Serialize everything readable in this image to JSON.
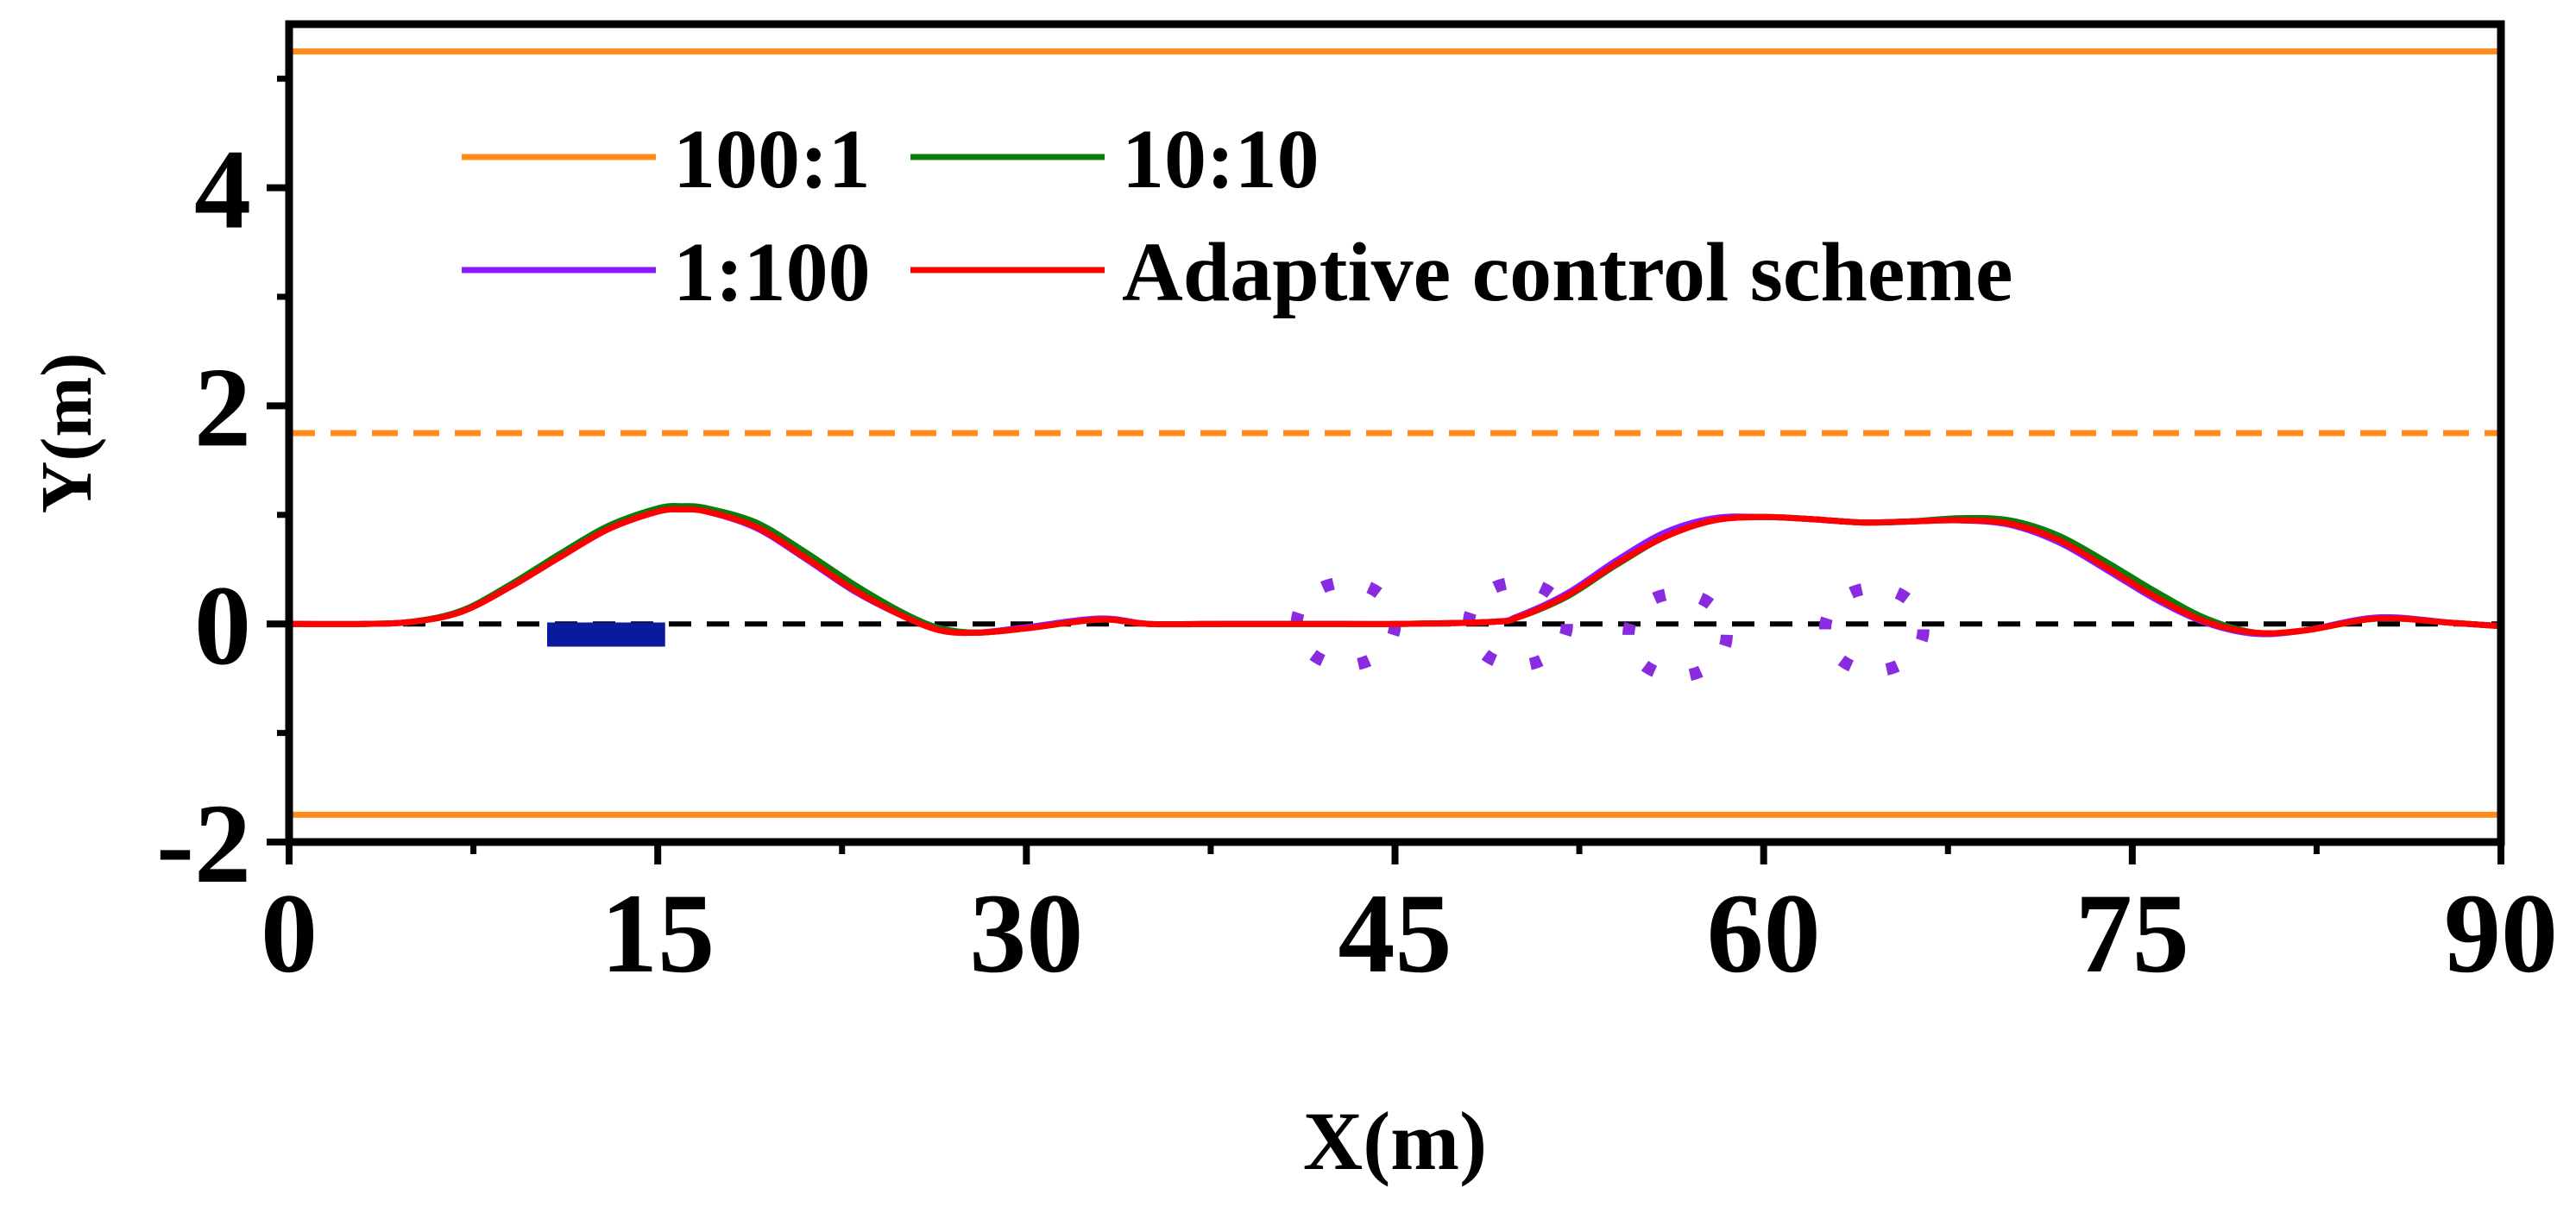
{
  "chart_data": {
    "type": "line",
    "title": "",
    "xlabel": "X(m)",
    "ylabel": "Y(m)",
    "xlim": [
      0,
      90
    ],
    "ylim": [
      -2,
      5.5
    ],
    "xticks": [
      0,
      15,
      30,
      45,
      60,
      75,
      90
    ],
    "xtick_labels": [
      "0",
      "15",
      "30",
      "45",
      "60",
      "75",
      "90"
    ],
    "yticks": [
      -2,
      0,
      2,
      4
    ],
    "ytick_labels": [
      "-2",
      "0",
      "2",
      "4"
    ],
    "grid": false,
    "legend_position": "top-left",
    "colors": {
      "boundary": "#ff8c1a",
      "centerline": "#000000",
      "s100_1": "#ff8c1a",
      "s10_10": "#0a7d0a",
      "s1_100": "#8a19ff",
      "adaptive": "#ff0000",
      "vehicle": "#0a1a9e",
      "obstacle": "#8a2be2"
    },
    "reference_lines": [
      {
        "name": "road-upper-edge",
        "y": 5.25,
        "style": "solid",
        "color": "#ff8c1a"
      },
      {
        "name": "lane-divider",
        "y": 1.75,
        "style": "dashed",
        "color": "#ff8c1a"
      },
      {
        "name": "road-lower-edge",
        "y": -1.75,
        "style": "solid",
        "color": "#ff8c1a"
      },
      {
        "name": "lane-centerline",
        "y": 0,
        "style": "dashed",
        "color": "#000000"
      }
    ],
    "legend": [
      {
        "label": "100:1",
        "color": "#ff8c1a"
      },
      {
        "label": "10:10",
        "color": "#0a7d0a"
      },
      {
        "label": "1:100",
        "color": "#8a19ff"
      },
      {
        "label": "Adaptive control scheme",
        "color": "#ff0000"
      }
    ],
    "x": [
      0,
      3,
      5,
      7,
      9,
      11,
      13,
      15,
      16,
      17,
      19,
      21,
      23,
      25,
      26.5,
      28,
      30,
      33,
      35,
      38,
      42,
      45,
      49,
      50,
      52,
      54,
      56,
      58,
      60,
      62,
      64,
      66,
      68,
      70,
      72,
      74,
      76,
      78,
      80,
      82,
      85,
      88,
      90
    ],
    "series": [
      {
        "name": "100:1",
        "color": "#ff8c1a",
        "values": [
          0,
          0,
          0.02,
          0.12,
          0.35,
          0.62,
          0.88,
          1.04,
          1.06,
          1.04,
          0.9,
          0.62,
          0.32,
          0.08,
          -0.05,
          -0.08,
          -0.04,
          0.04,
          0,
          0,
          0,
          0,
          0.02,
          0.06,
          0.25,
          0.55,
          0.8,
          0.95,
          0.98,
          0.96,
          0.93,
          0.94,
          0.96,
          0.93,
          0.78,
          0.52,
          0.25,
          0.03,
          -0.08,
          -0.06,
          0.05,
          0.01,
          -0.02
        ]
      },
      {
        "name": "10:10",
        "color": "#0a7d0a",
        "values": [
          0,
          0,
          0.02,
          0.12,
          0.36,
          0.64,
          0.9,
          1.06,
          1.08,
          1.06,
          0.93,
          0.66,
          0.36,
          0.1,
          -0.04,
          -0.08,
          -0.04,
          0.04,
          0,
          0,
          0,
          0,
          0.02,
          0.06,
          0.25,
          0.54,
          0.8,
          0.95,
          0.98,
          0.96,
          0.93,
          0.94,
          0.97,
          0.95,
          0.81,
          0.56,
          0.29,
          0.05,
          -0.08,
          -0.06,
          0.05,
          0.01,
          -0.02
        ]
      },
      {
        "name": "1:100",
        "color": "#8a19ff",
        "values": [
          0,
          0,
          0.02,
          0.11,
          0.34,
          0.61,
          0.87,
          1.03,
          1.05,
          1.03,
          0.88,
          0.6,
          0.3,
          0.07,
          -0.06,
          -0.08,
          -0.03,
          0.05,
          0,
          0,
          0,
          0,
          0.02,
          0.07,
          0.28,
          0.58,
          0.84,
          0.97,
          0.98,
          0.96,
          0.93,
          0.94,
          0.95,
          0.91,
          0.75,
          0.49,
          0.22,
          0.01,
          -0.09,
          -0.06,
          0.06,
          0.01,
          -0.02
        ]
      },
      {
        "name": "Adaptive control scheme",
        "color": "#ff0000",
        "values": [
          0,
          0,
          0.02,
          0.11,
          0.34,
          0.61,
          0.87,
          1.03,
          1.05,
          1.03,
          0.89,
          0.61,
          0.31,
          0.07,
          -0.06,
          -0.08,
          -0.04,
          0.04,
          0,
          0,
          0,
          0,
          0.02,
          0.06,
          0.26,
          0.55,
          0.8,
          0.95,
          0.98,
          0.96,
          0.93,
          0.94,
          0.95,
          0.92,
          0.77,
          0.51,
          0.24,
          0.02,
          -0.08,
          -0.06,
          0.05,
          0.01,
          -0.02
        ]
      }
    ],
    "vehicle": {
      "x_start": 10.5,
      "x_end": 15.3,
      "y": -0.05
    },
    "obstacles": [
      {
        "cx": 43,
        "cy": 0,
        "rx": 2,
        "ry": 0.38
      },
      {
        "cx": 50,
        "cy": 0,
        "rx": 2,
        "ry": 0.38
      },
      {
        "cx": 56.5,
        "cy": -0.1,
        "rx": 2,
        "ry": 0.38
      },
      {
        "cx": 64.5,
        "cy": -0.05,
        "rx": 2,
        "ry": 0.38
      }
    ]
  }
}
